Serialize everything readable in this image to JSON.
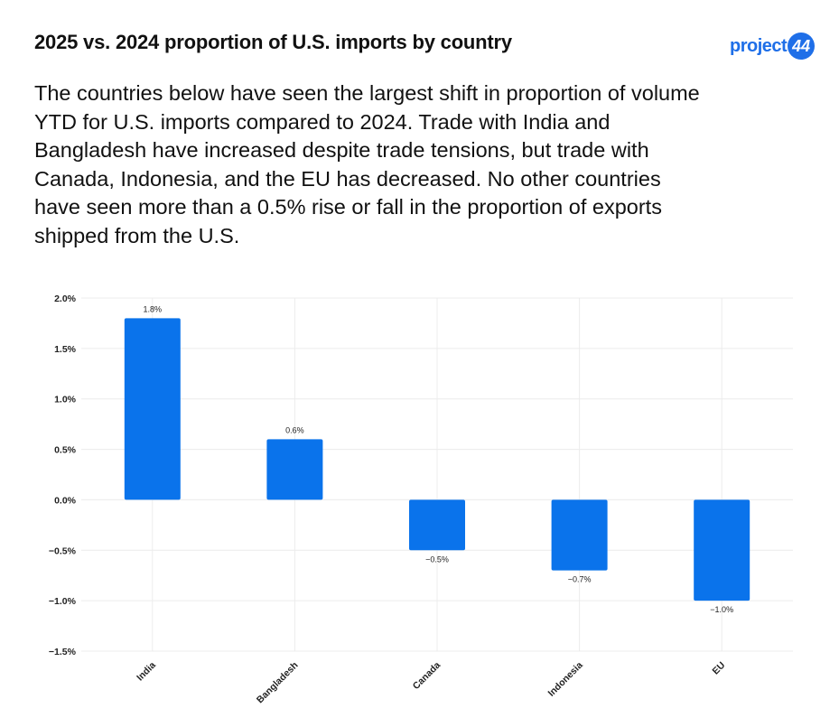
{
  "header": {
    "title": "2025 vs. 2024 proportion of U.S. imports by country",
    "logo_word": "project",
    "logo_badge": "44"
  },
  "description": "The countries below have seen the largest shift in proportion of volume YTD for U.S. imports compared to 2024. Trade with India and Bangladesh have increased despite trade tensions, but trade with Canada, Indonesia, and the EU has decreased. No other countries have seen more than a 0.5% rise or fall in the proportion of exports shipped from the U.S.",
  "colors": {
    "bar": "#0a73eb",
    "brand": "#1f6fe8",
    "grid": "#ececec"
  },
  "chart_data": {
    "type": "bar",
    "categories": [
      "India",
      "Bangladesh",
      "Canada",
      "Indonesia",
      "EU"
    ],
    "values": [
      1.8,
      0.6,
      -0.5,
      -0.7,
      -1.0
    ],
    "data_labels": [
      "1.8%",
      "0.6%",
      "−0.5%",
      "−0.7%",
      "−1.0%"
    ],
    "y_ticks": [
      2.0,
      1.5,
      1.0,
      0.5,
      0.0,
      -0.5,
      -1.0,
      -1.5
    ],
    "y_tick_labels": [
      "2.0%",
      "1.5%",
      "1.0%",
      "0.5%",
      "0.0%",
      "−0.5%",
      "−1.0%",
      "−1.5%"
    ],
    "ylim": [
      -1.5,
      2.0
    ],
    "title": "",
    "xlabel": "",
    "ylabel": "",
    "grid": true,
    "legend": "none"
  }
}
